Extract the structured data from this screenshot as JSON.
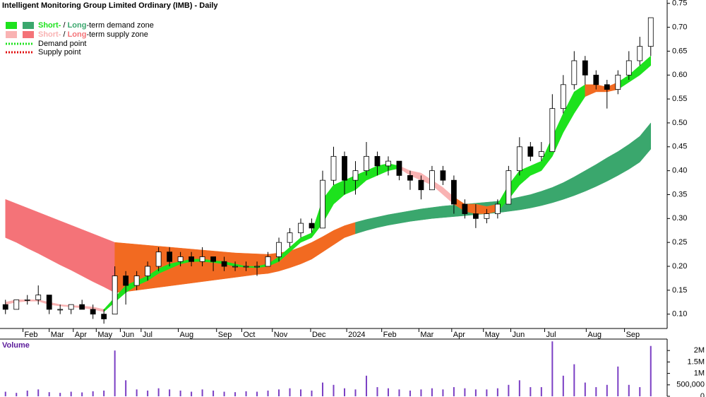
{
  "chart_data": {
    "type": "candlestick",
    "title": "Intelligent Monitoring Group Limited Ordinary (IMB) - Daily",
    "x": [
      0.5,
      1.5,
      2.5,
      3.5,
      4.5,
      5.5,
      6.5,
      7.5,
      8.5,
      9.5,
      10.5,
      11.5,
      12.5,
      13.5,
      14.5,
      15.5,
      16.5,
      17.5,
      18.5,
      19.5,
      20.5,
      21.5,
      22.5,
      23.5,
      24.5,
      25.5,
      26.5,
      27.5,
      28.5,
      29.5,
      30.5,
      31.5,
      32.5,
      33.5,
      34.5,
      35.5,
      36.5,
      37.5,
      38.5,
      39.5,
      40.5,
      41.5,
      42.5,
      43.5,
      44.5,
      45.5,
      46.5,
      47.5,
      48.5,
      49.5,
      50.5,
      51.5,
      52.5,
      53.5,
      54.5,
      55.5,
      56.5,
      57.5,
      58.5,
      59.5
    ],
    "open": [
      0.12,
      0.11,
      0.13,
      0.13,
      0.14,
      0.11,
      0.11,
      0.12,
      0.11,
      0.1,
      0.1,
      0.18,
      0.16,
      0.18,
      0.2,
      0.23,
      0.21,
      0.22,
      0.21,
      0.22,
      0.21,
      0.2,
      0.2,
      0.2,
      0.2,
      0.22,
      0.25,
      0.27,
      0.29,
      0.28,
      0.38,
      0.43,
      0.38,
      0.4,
      0.43,
      0.41,
      0.42,
      0.39,
      0.38,
      0.36,
      0.4,
      0.38,
      0.33,
      0.31,
      0.3,
      0.31,
      0.33,
      0.4,
      0.45,
      0.43,
      0.44,
      0.53,
      0.58,
      0.63,
      0.6,
      0.58,
      0.57,
      0.6,
      0.63,
      0.66
    ],
    "high": [
      0.13,
      0.13,
      0.14,
      0.16,
      0.14,
      0.12,
      0.12,
      0.13,
      0.12,
      0.11,
      0.2,
      0.19,
      0.19,
      0.21,
      0.24,
      0.24,
      0.23,
      0.23,
      0.24,
      0.22,
      0.22,
      0.21,
      0.21,
      0.21,
      0.23,
      0.26,
      0.28,
      0.3,
      0.3,
      0.4,
      0.45,
      0.44,
      0.42,
      0.46,
      0.44,
      0.43,
      0.42,
      0.4,
      0.39,
      0.41,
      0.41,
      0.39,
      0.34,
      0.33,
      0.32,
      0.34,
      0.41,
      0.47,
      0.46,
      0.46,
      0.56,
      0.6,
      0.65,
      0.64,
      0.61,
      0.59,
      0.61,
      0.65,
      0.68,
      0.72
    ],
    "low": [
      0.1,
      0.11,
      0.12,
      0.12,
      0.1,
      0.1,
      0.1,
      0.11,
      0.09,
      0.08,
      0.1,
      0.12,
      0.15,
      0.17,
      0.19,
      0.2,
      0.2,
      0.2,
      0.2,
      0.19,
      0.19,
      0.19,
      0.19,
      0.18,
      0.2,
      0.21,
      0.24,
      0.26,
      0.27,
      0.28,
      0.37,
      0.35,
      0.35,
      0.39,
      0.39,
      0.39,
      0.38,
      0.36,
      0.34,
      0.36,
      0.37,
      0.31,
      0.3,
      0.28,
      0.29,
      0.3,
      0.33,
      0.39,
      0.42,
      0.42,
      0.44,
      0.52,
      0.57,
      0.58,
      0.57,
      0.53,
      0.56,
      0.59,
      0.62,
      0.64
    ],
    "close": [
      0.11,
      0.13,
      0.13,
      0.14,
      0.11,
      0.11,
      0.12,
      0.11,
      0.1,
      0.09,
      0.18,
      0.16,
      0.18,
      0.2,
      0.23,
      0.21,
      0.22,
      0.21,
      0.22,
      0.21,
      0.2,
      0.2,
      0.2,
      0.2,
      0.22,
      0.25,
      0.27,
      0.29,
      0.28,
      0.38,
      0.43,
      0.38,
      0.4,
      0.43,
      0.41,
      0.42,
      0.39,
      0.38,
      0.36,
      0.4,
      0.38,
      0.33,
      0.31,
      0.3,
      0.31,
      0.33,
      0.4,
      0.45,
      0.43,
      0.44,
      0.53,
      0.58,
      0.63,
      0.6,
      0.58,
      0.57,
      0.6,
      0.63,
      0.66,
      0.72
    ],
    "up_color": "#ffffff",
    "down_color": "#000000",
    "bands": [
      {
        "upper": [
          0.34,
          0.331,
          0.322,
          0.313,
          0.304,
          0.295,
          0.286,
          0.277,
          0.268,
          0.259,
          0.25,
          0.248,
          0.246,
          0.244,
          0.242,
          0.24,
          0.238,
          0.236,
          0.234,
          0.232,
          0.23,
          0.228,
          0.227,
          0.226,
          0.225,
          0.228,
          0.232,
          0.24,
          0.25,
          0.262,
          0.275,
          0.285,
          0.292,
          0.298,
          0.303,
          0.308,
          0.312,
          0.316,
          0.32,
          0.323,
          0.326,
          0.328,
          0.33,
          0.332,
          0.334,
          0.336,
          0.34,
          0.345,
          0.35,
          0.357,
          0.365,
          0.375,
          0.387,
          0.4,
          0.413,
          0.427,
          0.44,
          0.455,
          0.472,
          0.5
        ],
        "lower": [
          0.26,
          0.25,
          0.238,
          0.227,
          0.215,
          0.203,
          0.192,
          0.18,
          0.168,
          0.157,
          0.145,
          0.147,
          0.15,
          0.153,
          0.156,
          0.159,
          0.162,
          0.165,
          0.168,
          0.171,
          0.174,
          0.177,
          0.18,
          0.183,
          0.185,
          0.19,
          0.197,
          0.205,
          0.215,
          0.23,
          0.245,
          0.26,
          0.268,
          0.275,
          0.281,
          0.286,
          0.29,
          0.294,
          0.297,
          0.3,
          0.302,
          0.304,
          0.306,
          0.308,
          0.31,
          0.312,
          0.315,
          0.318,
          0.322,
          0.327,
          0.333,
          0.34,
          0.348,
          0.357,
          0.367,
          0.378,
          0.39,
          0.403,
          0.418,
          0.445
        ],
        "zones": [
          {
            "from": 0,
            "to": 10,
            "color": "#f47378"
          },
          {
            "from": 10,
            "to": 32,
            "color": "#f26a21"
          },
          {
            "from": 32,
            "to": 59,
            "color": "#3aa76d"
          }
        ]
      },
      {
        "upper": [
          0.125,
          0.13,
          0.13,
          0.13,
          0.125,
          0.12,
          0.118,
          0.117,
          0.115,
          0.11,
          0.135,
          0.16,
          0.17,
          0.18,
          0.195,
          0.205,
          0.21,
          0.215,
          0.215,
          0.212,
          0.21,
          0.205,
          0.2,
          0.2,
          0.205,
          0.22,
          0.24,
          0.26,
          0.27,
          0.34,
          0.37,
          0.38,
          0.39,
          0.4,
          0.41,
          0.415,
          0.41,
          0.4,
          0.395,
          0.38,
          0.365,
          0.345,
          0.33,
          0.33,
          0.325,
          0.33,
          0.37,
          0.4,
          0.41,
          0.42,
          0.47,
          0.52,
          0.565,
          0.58,
          0.58,
          0.575,
          0.585,
          0.6,
          0.62,
          0.64
        ],
        "lower": [
          0.12,
          0.125,
          0.127,
          0.127,
          0.12,
          0.117,
          0.115,
          0.113,
          0.11,
          0.105,
          0.125,
          0.145,
          0.16,
          0.17,
          0.185,
          0.195,
          0.205,
          0.21,
          0.21,
          0.208,
          0.205,
          0.2,
          0.198,
          0.197,
          0.2,
          0.21,
          0.23,
          0.25,
          0.26,
          0.29,
          0.33,
          0.35,
          0.36,
          0.38,
          0.39,
          0.4,
          0.405,
          0.39,
          0.38,
          0.37,
          0.35,
          0.33,
          0.315,
          0.31,
          0.31,
          0.315,
          0.34,
          0.37,
          0.39,
          0.4,
          0.43,
          0.48,
          0.52,
          0.555,
          0.565,
          0.565,
          0.57,
          0.585,
          0.6,
          0.62
        ],
        "zones": [
          {
            "from": 0,
            "to": 9,
            "color": "#f9b3b3"
          },
          {
            "from": 9,
            "to": 36,
            "color": "#1de21d"
          },
          {
            "from": 36,
            "to": 41,
            "color": "#f9b3b3"
          },
          {
            "from": 41,
            "to": 45,
            "color": "#f26a21"
          },
          {
            "from": 45,
            "to": 53,
            "color": "#1de21d"
          },
          {
            "from": 53,
            "to": 56,
            "color": "#f26a21"
          },
          {
            "from": 56,
            "to": 59,
            "color": "#1de21d"
          }
        ]
      }
    ],
    "legend": [
      {
        "short": "Short-",
        "sep": " / ",
        "long": "Long",
        "text": "-term demand zone",
        "short_color": "#1de21d",
        "long_color": "#3aa76d"
      },
      {
        "short": "Short-",
        "sep": " / ",
        "long": "Long",
        "text": "-term supply zone",
        "short_color": "#f9b3b3",
        "long_color": "#f47378"
      }
    ],
    "points": [
      {
        "text": "Demand point",
        "color": "#1de21d"
      },
      {
        "text": "Supply point",
        "color": "#e01010"
      }
    ],
    "xlim": [
      0,
      61
    ],
    "xticks": [
      {
        "value": 2.1,
        "label": "Feb"
      },
      {
        "value": 4.5,
        "label": "Mar"
      },
      {
        "value": 6.7,
        "label": "Apr"
      },
      {
        "value": 8.8,
        "label": "May"
      },
      {
        "value": 11.0,
        "label": "Jun"
      },
      {
        "value": 12.9,
        "label": "Jul"
      },
      {
        "value": 16.3,
        "label": "Aug"
      },
      {
        "value": 19.8,
        "label": "Sep"
      },
      {
        "value": 22.1,
        "label": "Oct"
      },
      {
        "value": 24.9,
        "label": "Nov"
      },
      {
        "value": 28.4,
        "label": "Dec"
      },
      {
        "value": 31.7,
        "label": "2024"
      },
      {
        "value": 34.9,
        "label": "Feb"
      },
      {
        "value": 38.3,
        "label": "Mar"
      },
      {
        "value": 41.3,
        "label": "Apr"
      },
      {
        "value": 44.2,
        "label": "May"
      },
      {
        "value": 46.7,
        "label": "Jun"
      },
      {
        "value": 49.8,
        "label": "Jul"
      },
      {
        "value": 53.6,
        "label": "Aug"
      },
      {
        "value": 57.1,
        "label": "Sep"
      }
    ],
    "ylim": [
      0.07,
      0.757
    ],
    "yticks": [
      {
        "value": 0.1,
        "label": "0.10"
      },
      0.15,
      {
        "value": 0.2,
        "label": "0.20"
      },
      0.25,
      {
        "value": 0.3,
        "label": "0.30"
      },
      0.35,
      {
        "value": 0.4,
        "label": "0.40"
      },
      0.45,
      {
        "value": 0.5,
        "label": "0.50"
      },
      0.55,
      {
        "value": 0.6,
        "label": "0.60"
      },
      0.65,
      {
        "value": 0.7,
        "label": "0.70"
      },
      0.75
    ],
    "volume": {
      "label": "Volume",
      "color": "#7b3fc4",
      "values": [
        200000,
        150000,
        250000,
        300000,
        180000,
        150000,
        200000,
        170000,
        220000,
        250000,
        2000000,
        700000,
        300000,
        250000,
        350000,
        300000,
        250000,
        200000,
        300000,
        250000,
        200000,
        180000,
        220000,
        200000,
        250000,
        300000,
        350000,
        300000,
        250000,
        600000,
        500000,
        350000,
        300000,
        900000,
        400000,
        350000,
        300000,
        250000,
        300000,
        350000,
        300000,
        400000,
        350000,
        300000,
        300000,
        350000,
        500000,
        700000,
        400000,
        400000,
        2400000,
        900000,
        1400000,
        600000,
        400000,
        500000,
        1300000,
        500000,
        400000,
        2200000
      ],
      "ylim": [
        0,
        2500000
      ],
      "yticks": [
        0,
        {
          "value": 500000,
          "label": "500,000"
        },
        {
          "value": 1000000,
          "label": "1M"
        },
        {
          "value": 1500000,
          "label": "1.5M"
        },
        {
          "value": 2000000,
          "label": "2M"
        }
      ]
    }
  }
}
